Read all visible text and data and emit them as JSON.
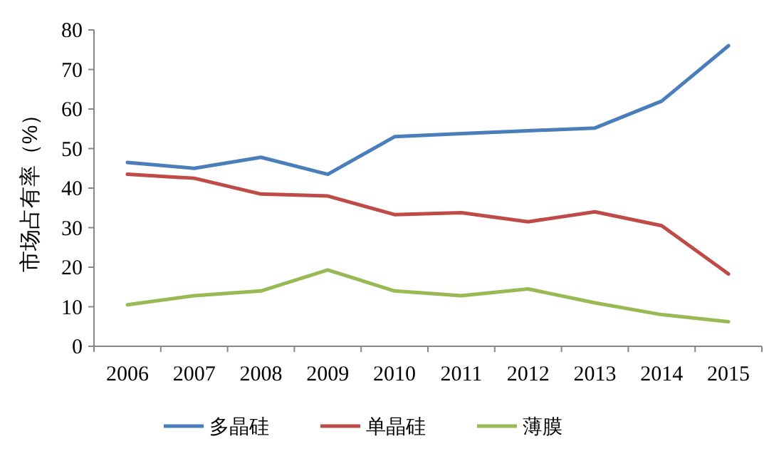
{
  "chart_data": {
    "type": "line",
    "ylabel": "市场占有率（%）",
    "categories": [
      "2006",
      "2007",
      "2008",
      "2009",
      "2010",
      "2011",
      "2012",
      "2013",
      "2014",
      "2015"
    ],
    "series": [
      {
        "name": "多晶硅",
        "color": "#4a7ebb",
        "values": [
          46.5,
          45,
          47.8,
          43.5,
          53,
          53.8,
          54.5,
          55.2,
          62,
          76
        ]
      },
      {
        "name": "单晶硅",
        "color": "#be4b48",
        "values": [
          43.5,
          42.5,
          38.5,
          38,
          33.3,
          33.8,
          31.5,
          34,
          30.5,
          18.3
        ]
      },
      {
        "name": "薄膜",
        "color": "#98b954",
        "values": [
          10.5,
          12.8,
          14,
          19.3,
          14,
          12.8,
          14.5,
          11,
          8,
          6.2
        ]
      }
    ],
    "ylim": [
      0,
      80
    ],
    "yticks": [
      0,
      10,
      20,
      30,
      40,
      50,
      60,
      70,
      80
    ],
    "grid": false,
    "legend": "bottom",
    "marker": "none",
    "line_style": "solid"
  }
}
